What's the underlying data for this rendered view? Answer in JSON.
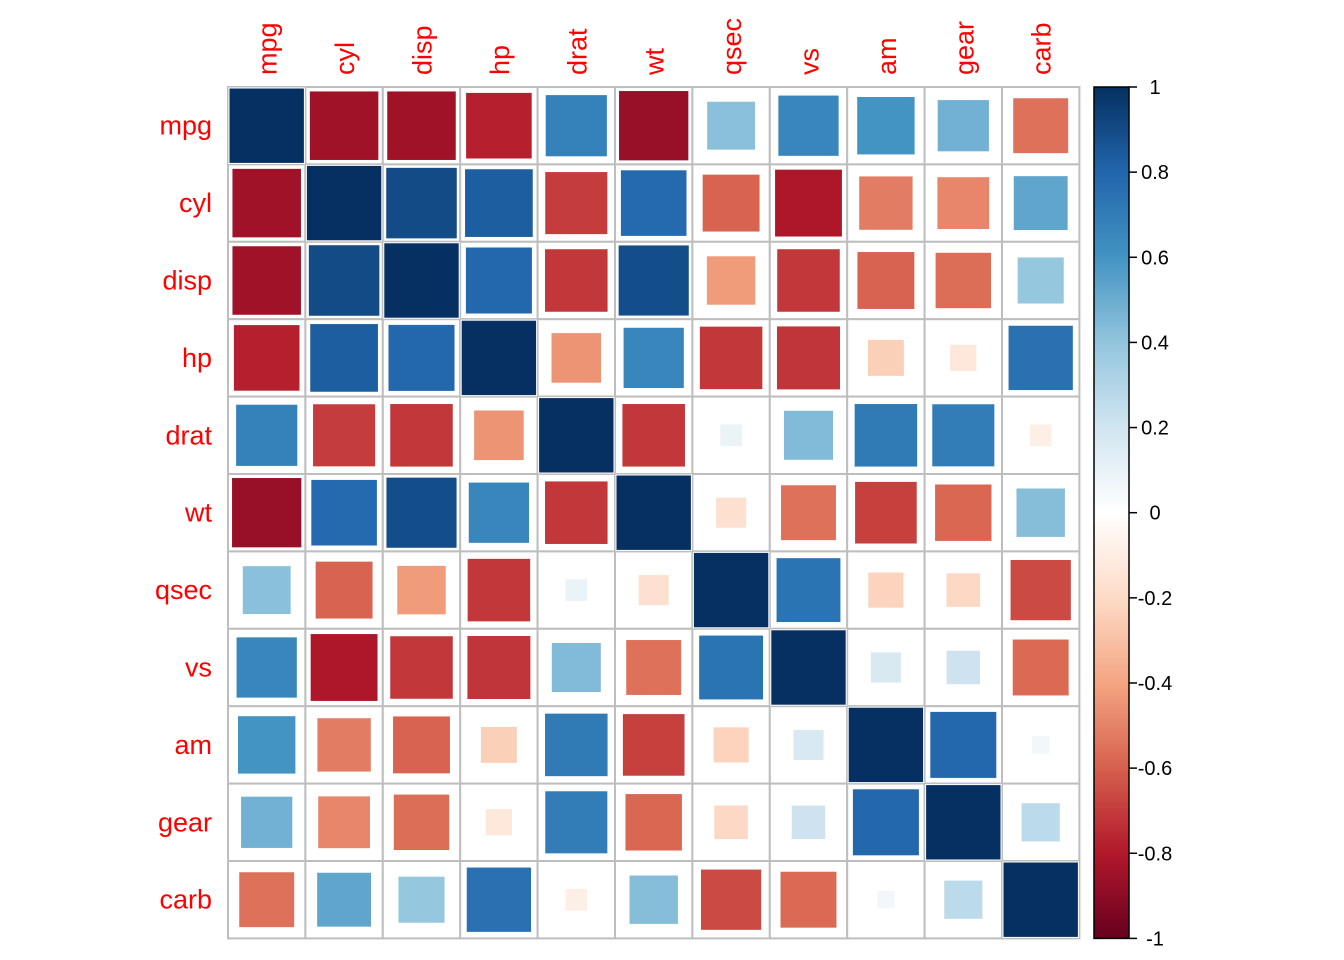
{
  "chart_data": {
    "type": "heatmap",
    "variables": [
      "mpg",
      "cyl",
      "disp",
      "hp",
      "drat",
      "wt",
      "qsec",
      "vs",
      "am",
      "gear",
      "carb"
    ],
    "matrix": [
      [
        1.0,
        -0.85,
        -0.85,
        -0.78,
        0.68,
        -0.87,
        0.42,
        0.66,
        0.6,
        0.48,
        -0.55
      ],
      [
        -0.85,
        1.0,
        0.9,
        0.83,
        -0.7,
        0.78,
        -0.59,
        -0.81,
        -0.52,
        -0.49,
        0.53
      ],
      [
        -0.85,
        0.9,
        1.0,
        0.79,
        -0.71,
        0.89,
        -0.43,
        -0.71,
        -0.59,
        -0.56,
        0.39
      ],
      [
        -0.78,
        0.83,
        0.79,
        1.0,
        -0.45,
        0.66,
        -0.71,
        -0.72,
        -0.24,
        -0.13,
        0.75
      ],
      [
        0.68,
        -0.7,
        -0.71,
        -0.45,
        1.0,
        -0.71,
        0.09,
        0.44,
        0.71,
        0.7,
        -0.09
      ],
      [
        -0.87,
        0.78,
        0.89,
        0.66,
        -0.71,
        1.0,
        -0.17,
        -0.55,
        -0.69,
        -0.58,
        0.43
      ],
      [
        0.42,
        -0.59,
        -0.43,
        -0.71,
        0.09,
        -0.17,
        1.0,
        0.74,
        -0.23,
        -0.21,
        -0.66
      ],
      [
        0.66,
        -0.81,
        -0.71,
        -0.72,
        0.44,
        -0.55,
        0.74,
        1.0,
        0.17,
        0.21,
        -0.57
      ],
      [
        0.6,
        -0.52,
        -0.59,
        -0.24,
        0.71,
        -0.69,
        -0.23,
        0.17,
        1.0,
        0.79,
        0.06
      ],
      [
        0.48,
        -0.49,
        -0.56,
        -0.13,
        0.7,
        -0.58,
        -0.21,
        0.21,
        0.79,
        1.0,
        0.27
      ],
      [
        -0.55,
        0.53,
        0.39,
        0.75,
        -0.09,
        0.43,
        -0.66,
        -0.57,
        0.06,
        0.27,
        1.0
      ]
    ],
    "colorbar": {
      "range": [
        -1,
        1
      ],
      "ticks": [
        "1",
        "0.8",
        "0.6",
        "0.4",
        "0.2",
        "0",
        "-0.2",
        "-0.4",
        "-0.6",
        "-0.8",
        "-1"
      ],
      "placement": "right"
    },
    "colors": {
      "neg": [
        "#67001F",
        "#B2182B",
        "#D6604D",
        "#F4A582",
        "#FDDBC7",
        "#FFFFFF"
      ],
      "pos": [
        "#FFFFFF",
        "#D1E5F0",
        "#92C5DE",
        "#4393C3",
        "#2166AC",
        "#053061"
      ],
      "label": "#ff0000",
      "grid": "#bebebe"
    },
    "grid": true
  }
}
